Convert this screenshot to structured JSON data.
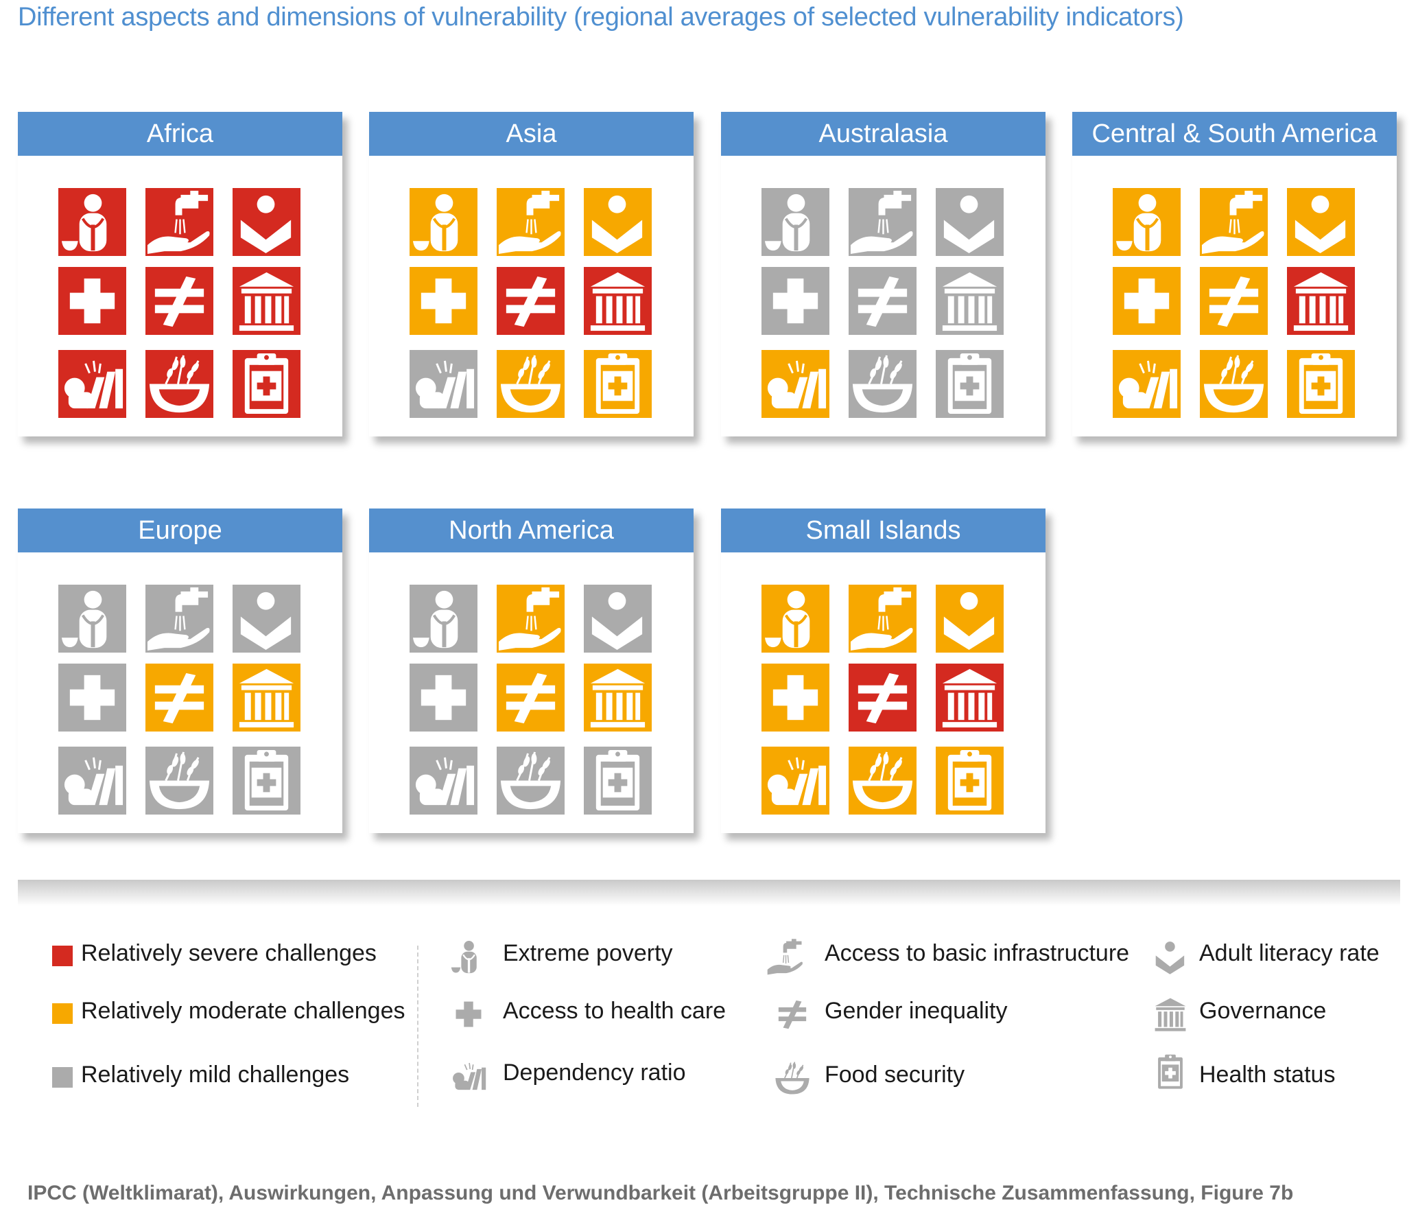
{
  "title": "Different aspects and dimensions of vulnerability (regional averages of selected vulnerability indicators)",
  "colors": {
    "severe": "#d42a20",
    "moderate": "#f7a800",
    "mild": "#ababab",
    "header": "#5590ce"
  },
  "indicator_grid": [
    [
      "extreme-poverty",
      "basic-infrastructure",
      "adult-literacy"
    ],
    [
      "health-care",
      "gender-inequality",
      "governance"
    ],
    [
      "dependency-ratio",
      "food-security",
      "health-status"
    ]
  ],
  "regions": [
    {
      "name": "Africa",
      "levels": [
        "severe",
        "severe",
        "severe",
        "severe",
        "severe",
        "severe",
        "severe",
        "severe",
        "severe"
      ]
    },
    {
      "name": "Asia",
      "levels": [
        "moderate",
        "moderate",
        "moderate",
        "moderate",
        "severe",
        "severe",
        "mild",
        "moderate",
        "moderate"
      ]
    },
    {
      "name": "Australasia",
      "levels": [
        "mild",
        "mild",
        "mild",
        "mild",
        "mild",
        "mild",
        "moderate",
        "mild",
        "mild"
      ]
    },
    {
      "name": "Central & South America",
      "levels": [
        "moderate",
        "moderate",
        "moderate",
        "moderate",
        "moderate",
        "severe",
        "moderate",
        "moderate",
        "moderate"
      ]
    },
    {
      "name": "Europe",
      "levels": [
        "mild",
        "mild",
        "mild",
        "mild",
        "moderate",
        "moderate",
        "mild",
        "mild",
        "mild"
      ]
    },
    {
      "name": "North America",
      "levels": [
        "mild",
        "moderate",
        "mild",
        "mild",
        "moderate",
        "moderate",
        "mild",
        "mild",
        "mild"
      ]
    },
    {
      "name": "Small Islands",
      "levels": [
        "moderate",
        "moderate",
        "moderate",
        "moderate",
        "severe",
        "severe",
        "moderate",
        "moderate",
        "moderate"
      ]
    }
  ],
  "legend": {
    "levels": [
      {
        "key": "severe",
        "label": "Relatively severe challenges"
      },
      {
        "key": "moderate",
        "label": "Relatively moderate challenges"
      },
      {
        "key": "mild",
        "label": "Relatively mild challenges"
      }
    ],
    "indicators": [
      {
        "icon": "extreme-poverty",
        "label": "Extreme poverty"
      },
      {
        "icon": "basic-infrastructure",
        "label": "Access to basic infrastructure"
      },
      {
        "icon": "adult-literacy",
        "label": "Adult literacy rate"
      },
      {
        "icon": "health-care",
        "label": "Access to health care"
      },
      {
        "icon": "gender-inequality",
        "label": "Gender inequality"
      },
      {
        "icon": "governance",
        "label": "Governance"
      },
      {
        "icon": "dependency-ratio",
        "label": "Dependency ratio"
      },
      {
        "icon": "food-security",
        "label": "Food security"
      },
      {
        "icon": "health-status",
        "label": "Health status"
      }
    ]
  },
  "footer": "IPCC (Weltklimarat), Auswirkungen, Anpassung und Verwundbarkeit (Arbeitsgruppe II), Technische Zusammenfassung, Figure 7b"
}
